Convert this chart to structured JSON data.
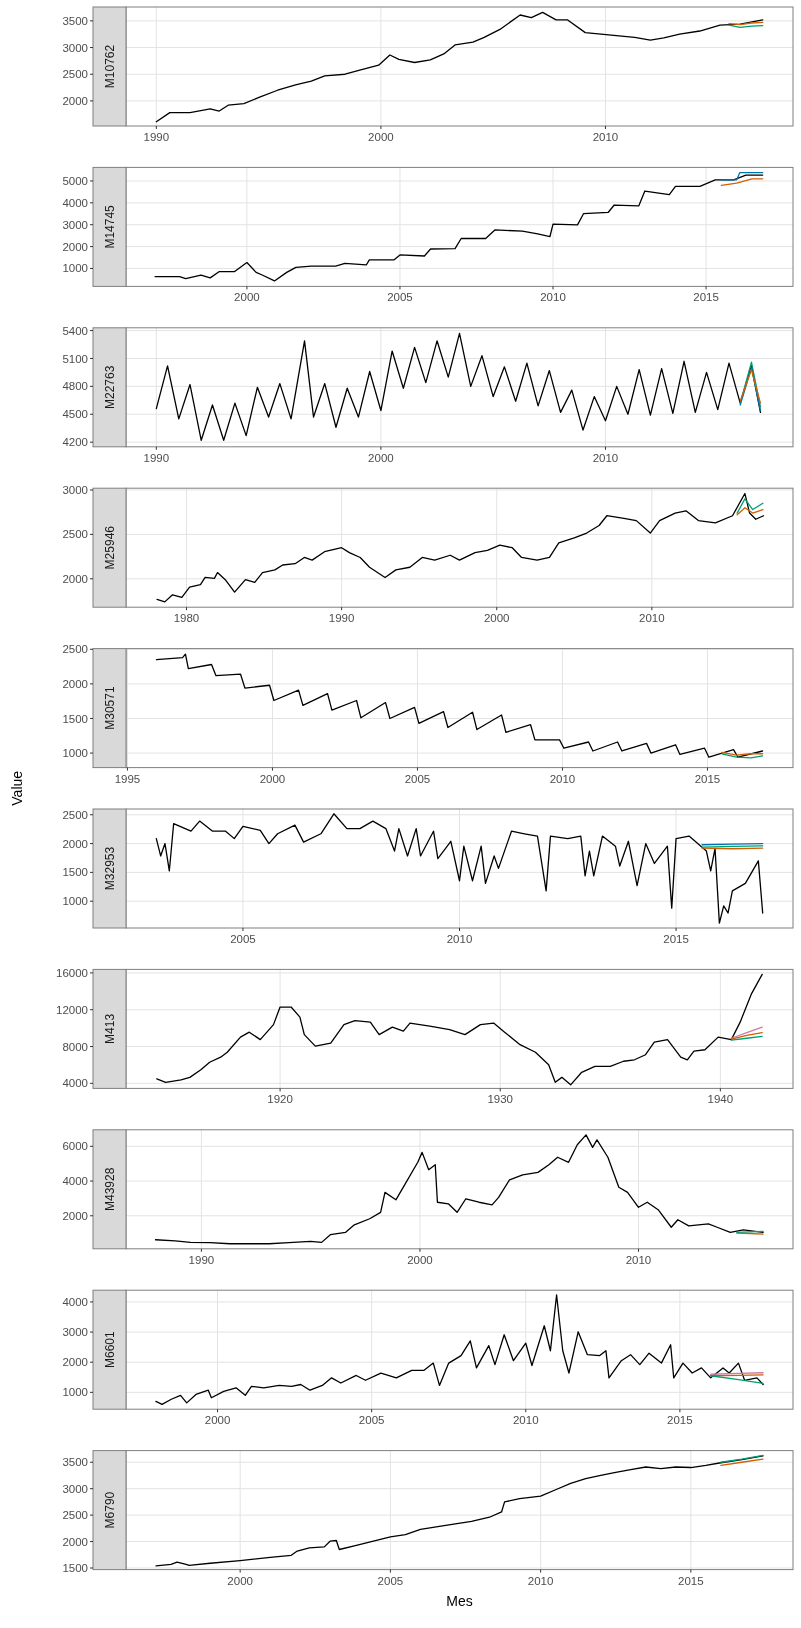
{
  "chart_data": [
    {
      "type": "line",
      "title": "M10762",
      "xlim": [
        1988.65,
        2018.35
      ],
      "xticks": [
        1990,
        2000,
        2010
      ],
      "ylim": [
        1530,
        3760
      ],
      "yticks": [
        2000,
        2500,
        3000,
        3500
      ],
      "grid": true,
      "series": [
        {
          "color": "#000000",
          "x": [
            1990.0,
            1990.6,
            1991.5,
            1992.4,
            1992.8,
            1993.2,
            1993.9,
            1994.6,
            1995.4,
            1996.2,
            1996.9,
            1997.5,
            1998.4,
            1999.1,
            1999.9,
            2000.4,
            2000.8,
            2001.5,
            2002.2,
            2002.8,
            2003.3,
            2004.1,
            2004.6,
            2005.3,
            2006.2,
            2006.7,
            2007.2,
            2007.8,
            2008.3,
            2009.1,
            2009.8,
            2010.6,
            2011.3,
            2012.0,
            2012.6,
            2013.3,
            2014.2,
            2015.1,
            2016.0,
            2017.0
          ],
          "values": [
            1610,
            1780,
            1780,
            1850,
            1810,
            1920,
            1950,
            2070,
            2200,
            2300,
            2370,
            2470,
            2500,
            2580,
            2670,
            2860,
            2780,
            2720,
            2770,
            2880,
            3050,
            3100,
            3190,
            3340,
            3610,
            3560,
            3660,
            3520,
            3520,
            3280,
            3250,
            3220,
            3190,
            3140,
            3180,
            3250,
            3310,
            3420,
            3440,
            3520
          ]
        },
        {
          "color": "#009E73",
          "x": [
            2015.5,
            2016.0,
            2016.5,
            2017.0
          ],
          "values": [
            3420,
            3380,
            3400,
            3410
          ]
        },
        {
          "color": "#D55E00",
          "x": [
            2015.5,
            2016.0,
            2016.5,
            2017.0
          ],
          "values": [
            3450,
            3430,
            3460,
            3470
          ]
        }
      ]
    },
    {
      "type": "line",
      "title": "M14745",
      "xlim": [
        1996.05,
        2017.84
      ],
      "xticks": [
        2000,
        2005,
        2010,
        2015
      ],
      "ylim": [
        180,
        5620
      ],
      "yticks": [
        1000,
        2000,
        3000,
        4000,
        5000
      ],
      "grid": true,
      "series": [
        {
          "color": "#000000",
          "x": [
            1997.0,
            1997.8,
            1998.0,
            1998.5,
            1998.8,
            1999.1,
            1999.6,
            2000.0,
            2000.3,
            2000.5,
            2000.9,
            2001.3,
            2001.6,
            2002.1,
            2002.9,
            2003.2,
            2003.9,
            2004.0,
            2004.8,
            2005.0,
            2005.8,
            2006.0,
            2006.8,
            2007.0,
            2007.8,
            2008.1,
            2009.0,
            2009.5,
            2009.9,
            2010.0,
            2010.8,
            2011.0,
            2011.8,
            2012.0,
            2012.8,
            2013.0,
            2013.8,
            2014.0,
            2014.8,
            2015.3,
            2015.9,
            2016.3,
            2016.85
          ],
          "values": [
            630,
            630,
            540,
            700,
            570,
            860,
            860,
            1270,
            820,
            700,
            430,
            820,
            1050,
            1110,
            1110,
            1230,
            1160,
            1390,
            1390,
            1620,
            1570,
            1890,
            1910,
            2370,
            2370,
            2760,
            2710,
            2580,
            2460,
            3030,
            2990,
            3510,
            3560,
            3900,
            3860,
            4540,
            4380,
            4750,
            4750,
            5050,
            5050,
            5270,
            5270
          ]
        },
        {
          "color": "#D55E00",
          "x": [
            2015.5,
            2016.0,
            2016.5,
            2016.85
          ],
          "values": [
            4800,
            4900,
            5100,
            5100
          ]
        },
        {
          "color": "#0072B2",
          "x": [
            2015.5,
            2016.0,
            2016.1,
            2016.85
          ],
          "values": [
            5050,
            5050,
            5380,
            5380
          ]
        }
      ]
    },
    {
      "type": "line",
      "title": "M22763",
      "xlim": [
        1988.65,
        2018.35
      ],
      "xticks": [
        1990,
        2000,
        2010
      ],
      "ylim": [
        4150,
        5430
      ],
      "yticks": [
        4200,
        4500,
        4800,
        5100,
        5400
      ],
      "grid": true,
      "series": [
        {
          "color": "#000000",
          "x": [
            1990.0,
            1990.5,
            1991.0,
            1991.5,
            1992.0,
            1992.5,
            1993.0,
            1993.5,
            1994.0,
            1994.5,
            1995.0,
            1995.5,
            1996.0,
            1996.6,
            1997.0,
            1997.5,
            1998.0,
            1998.5,
            1999.0,
            1999.5,
            2000.0,
            2000.5,
            2001.0,
            2001.5,
            2002.0,
            2002.5,
            2003.0,
            2003.5,
            2004.0,
            2004.5,
            2005.0,
            2005.5,
            2006.0,
            2006.5,
            2007.0,
            2007.5,
            2008.0,
            2008.5,
            2009.0,
            2009.5,
            2010.0,
            2010.5,
            2011.0,
            2011.5,
            2012.0,
            2012.5,
            2013.0,
            2013.5,
            2014.0,
            2014.5,
            2015.0,
            2015.5,
            2016.0,
            2016.5,
            2016.9
          ],
          "values": [
            4560,
            5020,
            4450,
            4820,
            4220,
            4600,
            4220,
            4620,
            4270,
            4790,
            4470,
            4830,
            4450,
            5290,
            4470,
            4830,
            4360,
            4780,
            4470,
            4960,
            4540,
            5180,
            4780,
            5220,
            4840,
            5290,
            4900,
            5370,
            4800,
            5130,
            4690,
            5010,
            4640,
            5050,
            4590,
            4970,
            4520,
            4760,
            4330,
            4690,
            4430,
            4800,
            4500,
            4980,
            4490,
            4990,
            4510,
            5070,
            4520,
            4950,
            4550,
            5050,
            4620,
            5020,
            4520
          ]
        },
        {
          "color": "#009E73",
          "x": [
            2016.0,
            2016.5,
            2016.9
          ],
          "values": [
            4620,
            5060,
            4580
          ]
        },
        {
          "color": "#0072B2",
          "x": [
            2016.0,
            2016.5,
            2016.9
          ],
          "values": [
            4600,
            5000,
            4540
          ]
        },
        {
          "color": "#D55E00",
          "x": [
            2016.0,
            2016.5,
            2016.9
          ],
          "values": [
            4640,
            4980,
            4620
          ]
        }
      ]
    },
    {
      "type": "line",
      "title": "M25946",
      "xlim": [
        1976.1,
        2019.1
      ],
      "xticks": [
        1980,
        1990,
        2000,
        2010
      ],
      "ylim": [
        1680,
        3020
      ],
      "yticks": [
        2000,
        2500,
        3000
      ],
      "grid": true,
      "series": [
        {
          "color": "#000000",
          "x": [
            1978.1,
            1978.6,
            1979.1,
            1979.7,
            1980.2,
            1980.9,
            1981.2,
            1981.8,
            1982.0,
            1982.5,
            1983.1,
            1983.8,
            1984.4,
            1984.9,
            1985.7,
            1986.2,
            1987.0,
            1987.6,
            1988.1,
            1988.9,
            1990.0,
            1990.5,
            1991.2,
            1991.8,
            1992.8,
            1993.5,
            1994.4,
            1995.2,
            1996.0,
            1997.0,
            1997.6,
            1998.6,
            1999.4,
            2000.2,
            2001.0,
            2001.6,
            2002.6,
            2003.4,
            2004.0,
            2005.0,
            2005.8,
            2006.6,
            2007.1,
            2008.2,
            2009.0,
            2009.9,
            2010.5,
            2011.5,
            2012.2,
            2013.0,
            2014.1,
            2015.2,
            2016.0,
            2016.3,
            2016.7,
            2017.2
          ],
          "values": [
            1767,
            1740,
            1820,
            1790,
            1905,
            1935,
            2015,
            2005,
            2070,
            1990,
            1850,
            1990,
            1960,
            2070,
            2100,
            2155,
            2170,
            2240,
            2210,
            2305,
            2350,
            2295,
            2240,
            2130,
            2015,
            2100,
            2130,
            2240,
            2210,
            2265,
            2210,
            2295,
            2320,
            2380,
            2350,
            2240,
            2210,
            2240,
            2405,
            2460,
            2515,
            2600,
            2710,
            2680,
            2655,
            2515,
            2655,
            2740,
            2765,
            2655,
            2630,
            2710,
            2960,
            2740,
            2670,
            2710
          ]
        },
        {
          "color": "#009E73",
          "x": [
            2015.5,
            2016.0,
            2016.5,
            2017.16
          ],
          "values": [
            2740,
            2900,
            2780,
            2850
          ]
        },
        {
          "color": "#D55E00",
          "x": [
            2015.5,
            2016.0,
            2016.5,
            2017.16
          ],
          "values": [
            2720,
            2800,
            2740,
            2780
          ]
        }
      ]
    },
    {
      "type": "line",
      "title": "M30571",
      "xlim": [
        1994.95,
        2017.95
      ],
      "xticks": [
        1995,
        2000,
        2005,
        2010,
        2015
      ],
      "ylim": [
        790,
        2510
      ],
      "yticks": [
        1000,
        1500,
        2000,
        2500
      ],
      "grid": true,
      "series": [
        {
          "color": "#000000",
          "x": [
            1996.0,
            1996.9,
            1997.0,
            1997.1,
            1997.9,
            1998.05,
            1998.9,
            1999.05,
            1999.9,
            2000.05,
            2000.9,
            2001.05,
            2001.9,
            2002.05,
            2002.9,
            2003.05,
            2003.9,
            2004.05,
            2004.9,
            2005.05,
            2005.9,
            2006.05,
            2006.9,
            2007.05,
            2007.9,
            2008.05,
            2008.9,
            2009.05,
            2009.9,
            2010.05,
            2010.9,
            2011.05,
            2011.9,
            2012.05,
            2012.9,
            2013.05,
            2013.9,
            2014.05,
            2014.9,
            2015.05,
            2015.9,
            2016.05,
            2016.9
          ],
          "values": [
            2350,
            2380,
            2430,
            2220,
            2280,
            2120,
            2140,
            1940,
            1980,
            1760,
            1910,
            1690,
            1860,
            1620,
            1760,
            1510,
            1730,
            1500,
            1660,
            1430,
            1600,
            1370,
            1590,
            1340,
            1550,
            1300,
            1410,
            1190,
            1190,
            1070,
            1160,
            1030,
            1160,
            1030,
            1140,
            1000,
            1120,
            980,
            1070,
            940,
            1050,
            940,
            1030
          ]
        },
        {
          "color": "#D55E00",
          "x": [
            2015.5,
            2016.0,
            2016.5,
            2016.9
          ],
          "values": [
            1010,
            970,
            990,
            990
          ]
        },
        {
          "color": "#009E73",
          "x": [
            2015.5,
            2016.0,
            2016.5,
            2016.9
          ],
          "values": [
            990,
            940,
            930,
            960
          ]
        }
      ]
    },
    {
      "type": "line",
      "title": "M32953",
      "ylabel": "Value",
      "xlim": [
        2002.3,
        2017.7
      ],
      "xticks": [
        2005,
        2010,
        2015
      ],
      "ylim": [
        535,
        2600
      ],
      "yticks": [
        1000,
        1500,
        2000,
        2500
      ],
      "grid": true,
      "series": [
        {
          "color": "#000000",
          "x": [
            2003.0,
            2003.1,
            2003.2,
            2003.3,
            2003.4,
            2003.8,
            2004.0,
            2004.3,
            2004.6,
            2004.8,
            2005.0,
            2005.4,
            2005.6,
            2005.8,
            2006.2,
            2006.4,
            2006.8,
            2007.1,
            2007.4,
            2007.7,
            2008.0,
            2008.3,
            2008.5,
            2008.6,
            2008.8,
            2009.0,
            2009.1,
            2009.4,
            2009.5,
            2009.8,
            2010.0,
            2010.1,
            2010.3,
            2010.5,
            2010.6,
            2010.8,
            2010.9,
            2011.2,
            2011.5,
            2011.8,
            2012.0,
            2012.1,
            2012.5,
            2012.8,
            2012.9,
            2013.0,
            2013.1,
            2013.3,
            2013.6,
            2013.7,
            2013.9,
            2014.1,
            2014.3,
            2014.5,
            2014.8,
            2014.9,
            2015.0,
            2015.3,
            2015.7,
            2015.8,
            2015.9,
            2016.0,
            2016.1,
            2016.2,
            2016.3,
            2016.6,
            2016.8,
            2016.9,
            2017.0
          ],
          "values": [
            2086,
            1785,
            2000,
            1525,
            2345,
            2215,
            2390,
            2215,
            2215,
            2086,
            2300,
            2230,
            2000,
            2170,
            2320,
            2025,
            2170,
            2517,
            2260,
            2260,
            2390,
            2260,
            1870,
            2260,
            1785,
            2260,
            1785,
            2215,
            1740,
            2040,
            1355,
            1955,
            1355,
            1955,
            1310,
            1785,
            1570,
            2215,
            2170,
            2130,
            1180,
            2130,
            2086,
            2130,
            1440,
            1870,
            1440,
            2130,
            1955,
            1610,
            2040,
            1270,
            2000,
            1655,
            1955,
            880,
            2086,
            2130,
            1870,
            1525,
            1915,
            620,
            920,
            795,
            1180,
            1310,
            1570,
            1700,
            795
          ]
        },
        {
          "color": "#0072B2",
          "x": [
            2015.6,
            2016.3,
            2017.0
          ],
          "values": [
            1980,
            1990,
            2000
          ]
        },
        {
          "color": "#009E73",
          "x": [
            2015.6,
            2016.3,
            2017.0
          ],
          "values": [
            1940,
            1950,
            1960
          ]
        },
        {
          "color": "#D55E00",
          "x": [
            2015.6,
            2016.3,
            2017.0
          ],
          "values": [
            1920,
            1910,
            1920
          ]
        }
      ]
    },
    {
      "type": "line",
      "title": "M413",
      "xlim": [
        1913.0,
        1943.3
      ],
      "xticks": [
        1920,
        1930,
        1940
      ],
      "ylim": [
        3450,
        16380
      ],
      "yticks": [
        4000,
        8000,
        12000,
        16000
      ],
      "grid": true,
      "series": [
        {
          "color": "#000000",
          "x": [
            1914.4,
            1914.8,
            1915.5,
            1915.9,
            1916.4,
            1916.8,
            1917.3,
            1917.6,
            1918.2,
            1918.6,
            1919.1,
            1919.7,
            1920.0,
            1920.5,
            1920.9,
            1921.1,
            1921.6,
            1922.3,
            1922.9,
            1923.4,
            1924.1,
            1924.5,
            1925.1,
            1925.6,
            1925.9,
            1926.8,
            1927.7,
            1928.4,
            1929.1,
            1929.7,
            1930.2,
            1930.9,
            1931.6,
            1932.2,
            1932.5,
            1932.8,
            1933.2,
            1933.7,
            1934.3,
            1935.0,
            1935.6,
            1936.1,
            1936.6,
            1937.0,
            1937.6,
            1938.2,
            1938.5,
            1938.8,
            1939.3,
            1939.9,
            1940.5,
            1940.9,
            1941.4,
            1941.9
          ],
          "values": [
            4490,
            4110,
            4380,
            4650,
            5470,
            6290,
            6840,
            7380,
            9020,
            9560,
            8750,
            10380,
            12290,
            12290,
            11200,
            9290,
            8040,
            8360,
            10380,
            10820,
            10650,
            9290,
            10110,
            9670,
            10550,
            10220,
            9840,
            9290,
            10380,
            10550,
            9560,
            8200,
            7380,
            6020,
            4110,
            4650,
            3840,
            5200,
            5850,
            5850,
            6400,
            6560,
            7110,
            8470,
            8750,
            6840,
            6560,
            7490,
            7650,
            9020,
            8750,
            10650,
            13660,
            15840
          ]
        },
        {
          "color": "#CC79A7",
          "x": [
            1940.5,
            1941.2,
            1941.9
          ],
          "values": [
            8900,
            9500,
            10100
          ]
        },
        {
          "color": "#D55E00",
          "x": [
            1940.5,
            1941.2,
            1941.9
          ],
          "values": [
            8800,
            9200,
            9500
          ]
        },
        {
          "color": "#009E73",
          "x": [
            1940.5,
            1941.2,
            1941.9
          ],
          "values": [
            8700,
            8900,
            9100
          ]
        }
      ]
    },
    {
      "type": "line",
      "title": "M43928",
      "xlim": [
        1986.55,
        2017.07
      ],
      "xticks": [
        1990,
        2000,
        2010
      ],
      "ylim": [
        100,
        6950
      ],
      "yticks": [
        2000,
        4000,
        6000
      ],
      "grid": true,
      "series": [
        {
          "color": "#000000",
          "x": [
            1987.9,
            1988.8,
            1989.5,
            1990.4,
            1991.3,
            1992.2,
            1993.1,
            1994.0,
            1995.0,
            1995.5,
            1995.9,
            1996.6,
            1997.0,
            1997.7,
            1998.2,
            1998.4,
            1998.9,
            1999.3,
            1999.9,
            2000.1,
            2000.4,
            2000.7,
            2000.8,
            2001.3,
            2001.7,
            2002.1,
            2002.7,
            2003.3,
            2003.6,
            2004.1,
            2004.7,
            2005.4,
            2005.9,
            2006.3,
            2006.8,
            2007.2,
            2007.6,
            2007.9,
            2008.1,
            2008.6,
            2009.1,
            2009.5,
            2010.0,
            2010.4,
            2010.9,
            2011.5,
            2011.8,
            2012.3,
            2013.2,
            2013.6,
            2014.2,
            2014.8,
            2015.7
          ],
          "values": [
            620,
            560,
            470,
            450,
            390,
            390,
            390,
            450,
            530,
            470,
            910,
            1050,
            1480,
            1830,
            2200,
            3350,
            2920,
            3780,
            5080,
            5650,
            4650,
            4940,
            2780,
            2690,
            2200,
            2980,
            2780,
            2630,
            3060,
            4070,
            4360,
            4500,
            4940,
            5370,
            5080,
            6090,
            6660,
            5940,
            6370,
            5370,
            3640,
            3350,
            2490,
            2780,
            2350,
            1340,
            1770,
            1420,
            1540,
            1340,
            1050,
            1190,
            1050
          ]
        },
        {
          "color": "#D55E00",
          "x": [
            2014.5,
            2015.1,
            2015.7
          ],
          "values": [
            1000,
            980,
            950
          ]
        },
        {
          "color": "#009E73",
          "x": [
            2014.5,
            2015.1,
            2015.7
          ],
          "values": [
            1050,
            1080,
            1100
          ]
        }
      ]
    },
    {
      "type": "line",
      "title": "M6601",
      "xlim": [
        1997.03,
        2018.67
      ],
      "xticks": [
        2000,
        2005,
        2010,
        2015
      ],
      "ylim": [
        440,
        4390
      ],
      "yticks": [
        1000,
        2000,
        3000,
        4000
      ],
      "grid": true,
      "series": [
        {
          "color": "#000000",
          "x": [
            1998.0,
            1998.2,
            1998.5,
            1998.8,
            1999.0,
            1999.3,
            1999.7,
            1999.8,
            2000.2,
            2000.6,
            2000.9,
            2001.1,
            2001.5,
            2002.0,
            2002.4,
            2002.7,
            2003.0,
            2003.4,
            2003.7,
            2004.0,
            2004.5,
            2004.8,
            2005.3,
            2005.8,
            2006.3,
            2006.7,
            2007.0,
            2007.2,
            2007.5,
            2007.9,
            2008.2,
            2008.4,
            2008.8,
            2009.0,
            2009.3,
            2009.6,
            2010.0,
            2010.2,
            2010.6,
            2010.8,
            2011.0,
            2011.2,
            2011.4,
            2011.7,
            2012.0,
            2012.4,
            2012.6,
            2012.7,
            2013.1,
            2013.4,
            2013.7,
            2014.0,
            2014.4,
            2014.7,
            2014.8,
            2015.1,
            2015.4,
            2015.7,
            2016.0,
            2016.4,
            2016.6,
            2016.9,
            2017.1,
            2017.5,
            2017.7
          ],
          "values": [
            700,
            600,
            770,
            900,
            650,
            930,
            1070,
            820,
            1030,
            1150,
            900,
            1200,
            1150,
            1230,
            1200,
            1260,
            1070,
            1230,
            1480,
            1310,
            1560,
            1400,
            1640,
            1480,
            1730,
            1730,
            1970,
            1230,
            1970,
            2220,
            2710,
            1810,
            2550,
            1920,
            2910,
            2050,
            2630,
            1890,
            3210,
            2380,
            4230,
            2380,
            1640,
            3010,
            2250,
            2220,
            2380,
            1480,
            2050,
            2250,
            1920,
            2300,
            1970,
            2580,
            1480,
            1970,
            1640,
            1810,
            1480,
            1810,
            1640,
            1970,
            1400,
            1480,
            1260
          ]
        },
        {
          "color": "#CC79A7",
          "x": [
            2016.0,
            2016.9,
            2017.7
          ],
          "values": [
            1600,
            1630,
            1650
          ]
        },
        {
          "color": "#D55E00",
          "x": [
            2016.0,
            2016.9,
            2017.7
          ],
          "values": [
            1550,
            1560,
            1580
          ]
        },
        {
          "color": "#009E73",
          "x": [
            2016.0,
            2016.9,
            2017.7
          ],
          "values": [
            1550,
            1420,
            1300
          ]
        }
      ]
    },
    {
      "type": "line",
      "title": "M6790",
      "xlabel": "Mes",
      "xlim": [
        1996.2,
        2018.4
      ],
      "xticks": [
        2000,
        2005,
        2010,
        2015
      ],
      "ylim": [
        1470,
        3720
      ],
      "yticks": [
        1500,
        2000,
        2500,
        3000,
        3500
      ],
      "grid": true,
      "series": [
        {
          "color": "#000000",
          "x": [
            1997.2,
            1997.7,
            1997.9,
            1998.2,
            1998.3,
            1999.0,
            2000.0,
            2001.0,
            2001.7,
            2001.9,
            2002.3,
            2002.8,
            2003.0,
            2003.2,
            2003.3,
            2003.8,
            2004.5,
            2005.0,
            2005.5,
            2006.0,
            2007.0,
            2007.7,
            2008.3,
            2008.7,
            2008.8,
            2009.3,
            2010.0,
            2010.5,
            2011.0,
            2011.5,
            2012.0,
            2012.5,
            2013.0,
            2013.5,
            2014.0,
            2014.5,
            2015.0,
            2015.5,
            2016.0,
            2016.7,
            2017.4
          ],
          "values": [
            1540,
            1570,
            1610,
            1570,
            1550,
            1590,
            1640,
            1700,
            1740,
            1820,
            1880,
            1900,
            2010,
            2020,
            1850,
            1920,
            2020,
            2090,
            2130,
            2230,
            2320,
            2380,
            2460,
            2560,
            2750,
            2810,
            2860,
            2980,
            3100,
            3190,
            3250,
            3310,
            3360,
            3410,
            3380,
            3410,
            3400,
            3440,
            3490,
            3550,
            3620
          ]
        },
        {
          "color": "#009E73",
          "x": [
            2016.0,
            2016.7,
            2017.4
          ],
          "values": [
            3500,
            3560,
            3630
          ]
        },
        {
          "color": "#D55E00",
          "x": [
            2016.0,
            2016.7,
            2017.4
          ],
          "values": [
            3440,
            3500,
            3560
          ]
        }
      ]
    }
  ]
}
